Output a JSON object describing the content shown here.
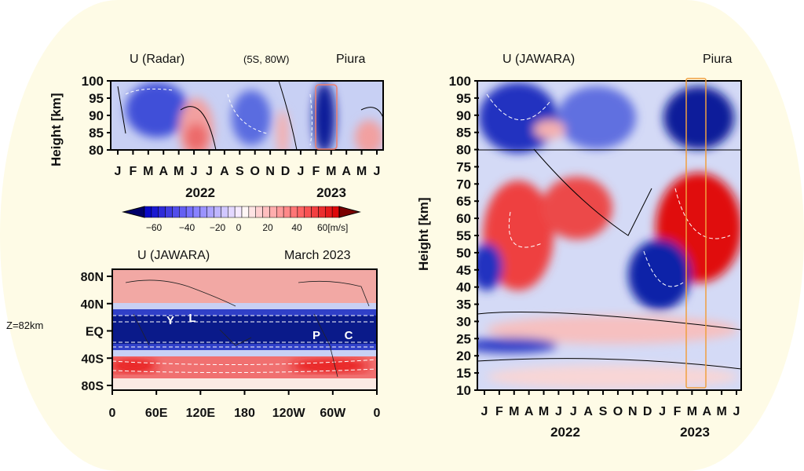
{
  "chart_data": [
    {
      "type": "heatmap",
      "title_left": "U (Radar)",
      "title_center": "(5S, 80W)",
      "title_right": "Piura",
      "ylabel": "Height [km]",
      "yticks": [
        "100",
        "95",
        "90",
        "85",
        "80"
      ],
      "ylim": [
        80,
        100
      ],
      "xticks": [
        "J",
        "F",
        "M",
        "A",
        "M",
        "J",
        "J",
        "A",
        "S",
        "O",
        "N",
        "D",
        "J",
        "F",
        "M",
        "A",
        "M",
        "J"
      ],
      "years": [
        "2022",
        "2023"
      ],
      "highlight": "March 2023",
      "colors": {
        "easterly": "#0a1a9a",
        "westerly": "#e81818",
        "box": "#f08070"
      }
    },
    {
      "type": "heatmap",
      "title_left": "U (JAWARA)",
      "title_right": "March 2023",
      "side_label": "Z=82km",
      "yticks": [
        "80N",
        "40N",
        "EQ",
        "40S",
        "80S"
      ],
      "xticks": [
        "0",
        "60E",
        "120E",
        "180",
        "120W",
        "60W",
        "0"
      ],
      "markers": [
        "Y",
        "L",
        "P",
        "C"
      ]
    },
    {
      "type": "heatmap",
      "title_left": "U (JAWARA)",
      "title_right": "Piura",
      "ylabel": "Height [km]",
      "yticks": [
        "100",
        "95",
        "90",
        "85",
        "80",
        "75",
        "70",
        "65",
        "60",
        "55",
        "50",
        "45",
        "40",
        "35",
        "30",
        "25",
        "20",
        "15",
        "10"
      ],
      "ylim": [
        10,
        100
      ],
      "xticks": [
        "J",
        "F",
        "M",
        "A",
        "M",
        "J",
        "J",
        "A",
        "S",
        "O",
        "N",
        "D",
        "J",
        "F",
        "M",
        "A",
        "M",
        "J"
      ],
      "years": [
        "2022",
        "2023"
      ],
      "colors": {
        "box": "#f0a040"
      }
    }
  ],
  "colorbar": {
    "ticks": [
      "−60",
      "−40",
      "−20",
      "0",
      "20",
      "40",
      "60[m/s]"
    ],
    "range": [
      -70,
      70
    ]
  }
}
